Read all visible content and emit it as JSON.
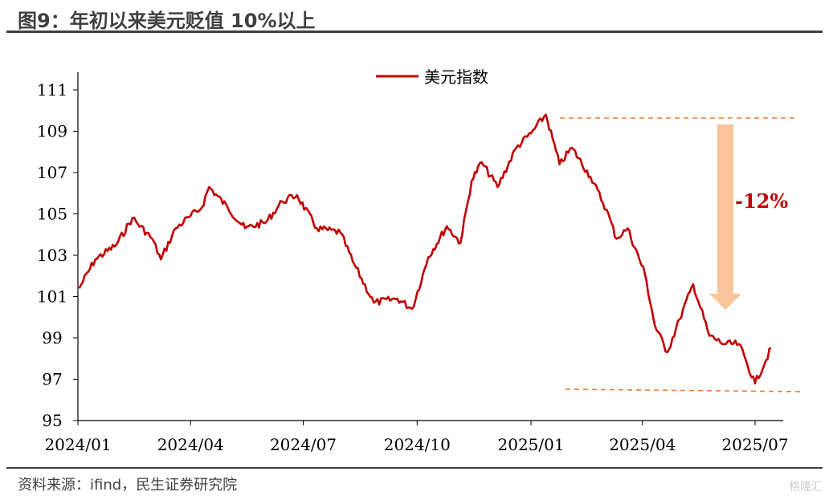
{
  "header": {
    "title": "图9：年初以来美元贬值 10%以上"
  },
  "footer": {
    "source": "资料来源：ifind，民生证券研究院",
    "watermark": "格隆汇"
  },
  "chart_data": {
    "type": "line",
    "title": "",
    "xlabel": "",
    "ylabel": "",
    "ylim": [
      95,
      111
    ],
    "yticks": [
      "95",
      "97",
      "99",
      "101",
      "103",
      "105",
      "107",
      "109",
      "111"
    ],
    "xticks": [
      "2024/01",
      "2024/04",
      "2024/07",
      "2024/10",
      "2025/01",
      "2025/04",
      "2025/07"
    ],
    "legend": {
      "position": "top",
      "entries": [
        "美元指数"
      ]
    },
    "grid": false,
    "series": [
      {
        "name": "美元指数",
        "color": "#c00000",
        "x": [
          "2024/01/02",
          "2024/01/15",
          "2024/02/01",
          "2024/02/14",
          "2024/03/01",
          "2024/03/08",
          "2024/03/20",
          "2024/04/01",
          "2024/04/10",
          "2024/04/16",
          "2024/05/01",
          "2024/05/15",
          "2024/06/01",
          "2024/06/14",
          "2024/06/26",
          "2024/07/12",
          "2024/07/31",
          "2024/08/10",
          "2024/08/27",
          "2024/09/15",
          "2024/09/27",
          "2024/10/10",
          "2024/10/25",
          "2024/11/05",
          "2024/11/14",
          "2024/11/22",
          "2024/12/05",
          "2024/12/20",
          "2025/01/01",
          "2025/01/13",
          "2025/01/24",
          "2025/02/03",
          "2025/02/18",
          "2025/03/03",
          "2025/03/11",
          "2025/03/20",
          "2025/04/03",
          "2025/04/11",
          "2025/04/21",
          "2025/05/01",
          "2025/05/12",
          "2025/05/25",
          "2025/06/06",
          "2025/06/18",
          "2025/07/01",
          "2025/07/14"
        ],
        "values": [
          101.4,
          102.8,
          103.5,
          104.8,
          103.8,
          102.8,
          104.3,
          104.9,
          105.3,
          106.3,
          105.3,
          104.3,
          104.6,
          105.6,
          105.9,
          104.3,
          104.1,
          102.7,
          100.7,
          100.9,
          100.4,
          102.9,
          104.4,
          103.6,
          106.6,
          107.5,
          106.3,
          108.2,
          108.9,
          109.8,
          107.4,
          108.2,
          106.8,
          105.2,
          103.8,
          104.3,
          102.1,
          99.6,
          98.3,
          99.9,
          101.6,
          99.1,
          98.7,
          98.7,
          96.8,
          98.5
        ]
      }
    ],
    "annotations": {
      "change_label": "-12%"
    }
  }
}
